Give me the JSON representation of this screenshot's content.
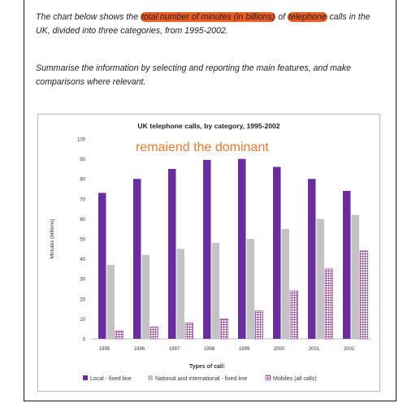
{
  "task": {
    "line1_parts": [
      {
        "text": "The chart below shows the ",
        "hl": false
      },
      {
        "text": "total number of minutes (in billions)",
        "hl": true
      },
      {
        "text": " of ",
        "hl": false
      },
      {
        "text": "telephone",
        "hl": true
      },
      {
        "text": " calls in the",
        "hl": false
      }
    ],
    "line2": "UK, divided into three categories, from 1995-2002.",
    "prompt_line1": "Summarise the information by selecting and reporting the main features, and make",
    "prompt_line2": "comparisons where relevant."
  },
  "annotation": "remaiend the dominant",
  "colors": {
    "local": "#6a2c9e",
    "national": "#c3c3c3",
    "mobiles": "#9b3c9b",
    "highlight": "#f05a1e",
    "annotation": "#f07a2e"
  },
  "chart_data": {
    "type": "bar",
    "title": "UK telephone calls, by category, 1995-2002",
    "xlabel": "Types of call:",
    "ylabel": "Minutes (billions)",
    "ylim": [
      0,
      100
    ],
    "yticks": [
      0,
      10,
      20,
      30,
      40,
      50,
      60,
      70,
      80,
      90,
      100
    ],
    "categories": [
      "1995",
      "1996",
      "1997",
      "1998",
      "1999",
      "2000",
      "2001",
      "2002"
    ],
    "series": [
      {
        "name": "Local - fixed line",
        "values": [
          73,
          80,
          85,
          89.5,
          90,
          86,
          80,
          74
        ]
      },
      {
        "name": "National and international - fixed line",
        "values": [
          37,
          42,
          45,
          48,
          50,
          55,
          60,
          62
        ]
      },
      {
        "name": "Mobiles (all calls)",
        "values": [
          4,
          6,
          8,
          10,
          14,
          24,
          35,
          44
        ]
      }
    ],
    "legend_position": "bottom",
    "grid": false
  }
}
